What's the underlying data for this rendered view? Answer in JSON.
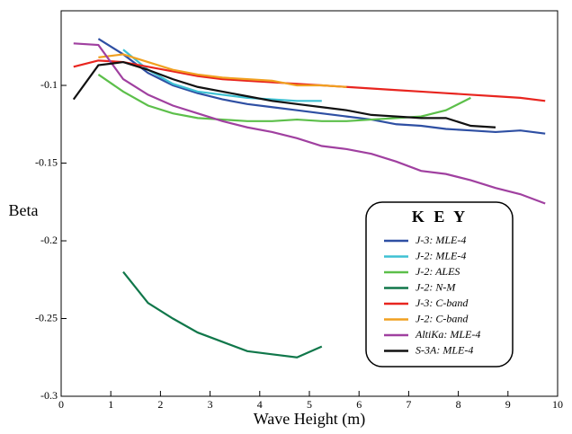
{
  "chart_data": {
    "type": "line",
    "xlabel": "Wave Height (m)",
    "ylabel": "Beta",
    "legend_title": "K E Y",
    "xlim": [
      0,
      10
    ],
    "ylim": [
      -0.3,
      -0.052
    ],
    "xticks": [
      0,
      1,
      2,
      3,
      4,
      5,
      6,
      7,
      8,
      9,
      10
    ],
    "yticks": [
      -0.3,
      -0.25,
      -0.2,
      -0.15,
      -0.1
    ],
    "grid": false,
    "legend": "lower right",
    "series": [
      {
        "name": "J-3: MLE-4",
        "color": "#2e4fa3",
        "x": [
          0.75,
          1.25,
          1.75,
          2.25,
          2.75,
          3.25,
          3.75,
          4.25,
          4.75,
          5.25,
          5.75,
          6.25,
          6.75,
          7.25,
          7.75,
          8.25,
          8.75,
          9.25,
          9.75
        ],
        "values": [
          -0.07,
          -0.08,
          -0.092,
          -0.1,
          -0.105,
          -0.109,
          -0.112,
          -0.114,
          -0.116,
          -0.118,
          -0.12,
          -0.122,
          -0.125,
          -0.126,
          -0.128,
          -0.129,
          -0.13,
          -0.129,
          -0.131
        ]
      },
      {
        "name": "J-2: MLE-4",
        "color": "#3ec1d3",
        "x": [
          1.25,
          1.75,
          2.25,
          2.75,
          3.25,
          3.75,
          4.25,
          4.75,
          5.25
        ],
        "values": [
          -0.077,
          -0.09,
          -0.099,
          -0.104,
          -0.106,
          -0.108,
          -0.109,
          -0.11,
          -0.11
        ]
      },
      {
        "name": "J-2: ALES",
        "color": "#5cbf4a",
        "x": [
          0.75,
          1.25,
          1.75,
          2.25,
          2.75,
          3.25,
          3.75,
          4.25,
          4.75,
          5.25,
          5.75,
          6.25,
          6.75,
          7.25,
          7.75,
          8.25
        ],
        "values": [
          -0.093,
          -0.104,
          -0.113,
          -0.118,
          -0.121,
          -0.122,
          -0.123,
          -0.123,
          -0.122,
          -0.123,
          -0.123,
          -0.122,
          -0.121,
          -0.12,
          -0.116,
          -0.108
        ]
      },
      {
        "name": "J-2: N-M",
        "color": "#10774a",
        "x": [
          1.25,
          1.75,
          2.25,
          2.75,
          3.25,
          3.75,
          4.25,
          4.75,
          5.25
        ],
        "values": [
          -0.22,
          -0.24,
          -0.25,
          -0.259,
          -0.265,
          -0.271,
          -0.273,
          -0.275,
          -0.268
        ]
      },
      {
        "name": "J-3: C-band",
        "color": "#e8251f",
        "x": [
          0.25,
          0.75,
          1.25,
          1.75,
          2.25,
          2.75,
          3.25,
          3.75,
          4.25,
          4.75,
          5.25,
          5.75,
          6.25,
          6.75,
          7.25,
          7.75,
          8.25,
          8.75,
          9.25,
          9.75
        ],
        "values": [
          -0.088,
          -0.084,
          -0.085,
          -0.088,
          -0.091,
          -0.094,
          -0.096,
          -0.097,
          -0.098,
          -0.099,
          -0.1,
          -0.101,
          -0.102,
          -0.103,
          -0.104,
          -0.105,
          -0.106,
          -0.107,
          -0.108,
          -0.11
        ]
      },
      {
        "name": "J-2: C-band",
        "color": "#f0a020",
        "x": [
          0.75,
          1.25,
          1.75,
          2.25,
          2.75,
          3.25,
          3.75,
          4.25,
          4.75,
          5.25,
          5.75
        ],
        "values": [
          -0.082,
          -0.08,
          -0.085,
          -0.09,
          -0.093,
          -0.095,
          -0.096,
          -0.097,
          -0.1,
          -0.1,
          -0.101
        ]
      },
      {
        "name": "AltiKa: MLE-4",
        "color": "#a040a0",
        "x": [
          0.25,
          0.75,
          1.25,
          1.75,
          2.25,
          2.75,
          3.25,
          3.75,
          4.25,
          4.75,
          5.25,
          5.75,
          6.25,
          6.75,
          7.25,
          7.75,
          8.25,
          8.75,
          9.25,
          9.75
        ],
        "values": [
          -0.073,
          -0.074,
          -0.096,
          -0.106,
          -0.113,
          -0.118,
          -0.123,
          -0.127,
          -0.13,
          -0.134,
          -0.139,
          -0.141,
          -0.144,
          -0.149,
          -0.155,
          -0.157,
          -0.161,
          -0.166,
          -0.17,
          -0.176
        ]
      },
      {
        "name": "S-3A: MLE-4",
        "color": "#111111",
        "x": [
          0.25,
          0.75,
          1.25,
          1.75,
          2.25,
          2.75,
          3.25,
          3.75,
          4.25,
          4.75,
          5.25,
          5.75,
          6.25,
          6.75,
          7.25,
          7.75,
          8.25,
          8.75
        ],
        "values": [
          -0.109,
          -0.087,
          -0.085,
          -0.09,
          -0.096,
          -0.101,
          -0.104,
          -0.107,
          -0.11,
          -0.112,
          -0.114,
          -0.116,
          -0.119,
          -0.12,
          -0.121,
          -0.121,
          -0.126,
          -0.127
        ]
      }
    ]
  }
}
